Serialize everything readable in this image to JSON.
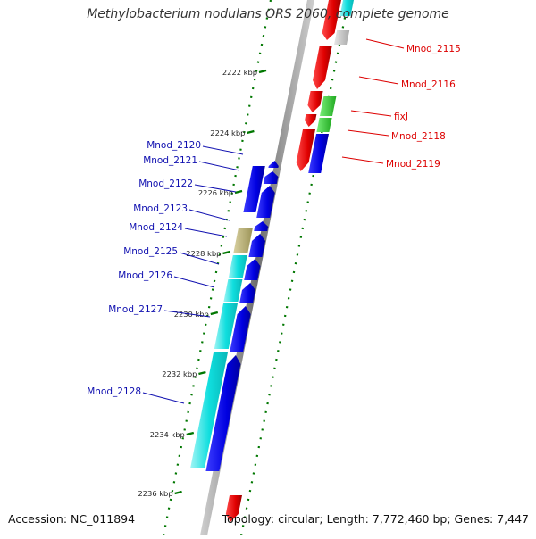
{
  "title": "Methylobacterium nodulans ORS 2060, complete genome",
  "footer": {
    "accession": "Accession: NC_011894",
    "summary": "Topology: circular; Length: 7,772,460 bp; Genes: 7,447"
  },
  "colors": {
    "forward_cds": "#e00000",
    "reverse_cds": "#0000e0",
    "rna_reverse": "#00e0e0",
    "regulator": "#33cc33",
    "unknown": "#c0c0c0",
    "olive": "#b0a868",
    "backbone": "#8c8c8c",
    "ticks": "#007700",
    "right_labels": "#dd0000",
    "left_labels": "#1010b0"
  },
  "ticks": [
    {
      "label": "2222 kbp"
    },
    {
      "label": "2224 kbp"
    },
    {
      "label": "2226 kbp"
    },
    {
      "label": "2228 kbp"
    },
    {
      "label": "2230 kbp"
    },
    {
      "label": "2232 kbp"
    },
    {
      "label": "2234 kbp"
    },
    {
      "label": "2236 kbp"
    }
  ],
  "right_genes": [
    {
      "label": "Mnod_2115"
    },
    {
      "label": "Mnod_2116"
    },
    {
      "label": "fixJ"
    },
    {
      "label": "Mnod_2118"
    },
    {
      "label": "Mnod_2119"
    }
  ],
  "left_genes": [
    {
      "label": "Mnod_2120"
    },
    {
      "label": "Mnod_2121"
    },
    {
      "label": "Mnod_2122"
    },
    {
      "label": "Mnod_2123"
    },
    {
      "label": "Mnod_2124"
    },
    {
      "label": "Mnod_2125"
    },
    {
      "label": "Mnod_2126"
    },
    {
      "label": "Mnod_2127"
    },
    {
      "label": "Mnod_2128"
    }
  ]
}
